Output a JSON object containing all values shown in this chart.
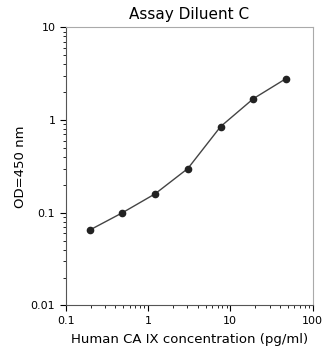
{
  "title": "Assay Diluent C",
  "xlabel": "Human CA IX concentration (pg/ml)",
  "ylabel": "OD=450 nm",
  "x_data": [
    0.195,
    0.488,
    1.22,
    3.05,
    7.63,
    19.1,
    47.7
  ],
  "y_data": [
    0.065,
    0.1,
    0.16,
    0.3,
    0.85,
    1.7,
    2.8
  ],
  "xlim": [
    0.1,
    100
  ],
  "ylim": [
    0.01,
    10
  ],
  "line_color": "#444444",
  "marker_color": "#222222",
  "marker_size": 4.5,
  "line_width": 1.0,
  "title_fontsize": 11,
  "label_fontsize": 9.5,
  "tick_fontsize": 8,
  "background_color": "#ffffff"
}
